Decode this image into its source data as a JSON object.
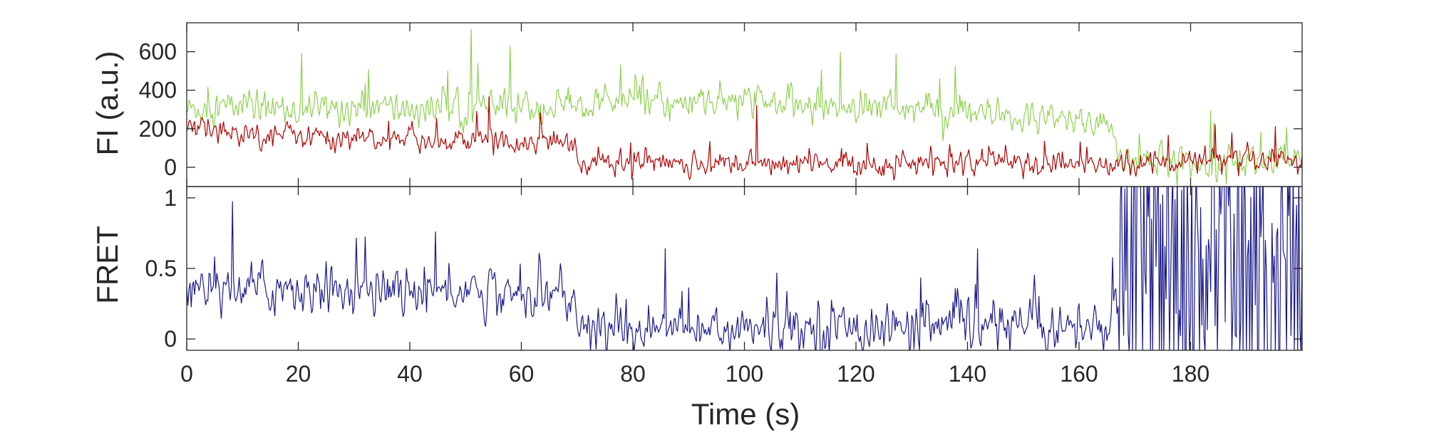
{
  "chart_data": [
    {
      "type": "line",
      "panel": "top",
      "title": "",
      "ylabel": "FI (a.u.)",
      "xlabel": "",
      "xlim": [
        0,
        200
      ],
      "ylim": [
        -100,
        750
      ],
      "yticks": [
        0,
        200,
        400,
        600
      ],
      "ytick_labels": [
        "0",
        "200",
        "400",
        "600"
      ],
      "grid": false,
      "legend": "none",
      "noise": [
        60,
        45
      ],
      "series": [
        {
          "color": "#8fd14f",
          "x": [
            0,
            10,
            20,
            30,
            40,
            50,
            60,
            69.5,
            70,
            80,
            90,
            100,
            110,
            120,
            130,
            140,
            150,
            160,
            166,
            167,
            180,
            200
          ],
          "values": [
            300,
            320,
            300,
            310,
            300,
            310,
            310,
            310,
            340,
            340,
            330,
            340,
            320,
            320,
            310,
            270,
            250,
            240,
            230,
            40,
            30,
            40
          ]
        },
        {
          "color": "#b00000",
          "x": [
            0,
            10,
            20,
            30,
            40,
            50,
            60,
            69.5,
            70,
            80,
            90,
            100,
            110,
            120,
            130,
            140,
            150,
            160,
            166,
            167,
            180,
            200
          ],
          "values": [
            200,
            180,
            170,
            150,
            140,
            140,
            140,
            140,
            20,
            30,
            20,
            20,
            15,
            20,
            20,
            25,
            20,
            15,
            15,
            20,
            30,
            20
          ]
        }
      ]
    },
    {
      "type": "line",
      "panel": "bottom",
      "title": "",
      "ylabel": "FRET",
      "xlabel": "Time (s)",
      "xlim": [
        0,
        200
      ],
      "ylim": [
        -0.08,
        1.08
      ],
      "yticks": [
        0,
        0.5,
        1
      ],
      "ytick_labels": [
        "0",
        "0.5",
        "1"
      ],
      "xticks": [
        0,
        20,
        40,
        60,
        80,
        100,
        120,
        140,
        160,
        180
      ],
      "xtick_labels": [
        "0",
        "20",
        "40",
        "60",
        "80",
        "100",
        "120",
        "140",
        "160",
        "180"
      ],
      "grid": false,
      "legend": "none",
      "noise": [
        0.12
      ],
      "series": [
        {
          "color": "#1a1a8c",
          "x": [
            0,
            10,
            20,
            30,
            40,
            50,
            60,
            69.5,
            70,
            80,
            90,
            100,
            110,
            120,
            130,
            140,
            150,
            160,
            166,
            167,
            180,
            200
          ],
          "values": [
            0.38,
            0.37,
            0.36,
            0.35,
            0.35,
            0.35,
            0.33,
            0.32,
            0.06,
            0.08,
            0.07,
            0.07,
            0.08,
            0.09,
            0.08,
            0.09,
            0.09,
            0.08,
            0.08,
            0.5,
            0.5,
            0.5
          ]
        }
      ]
    }
  ]
}
